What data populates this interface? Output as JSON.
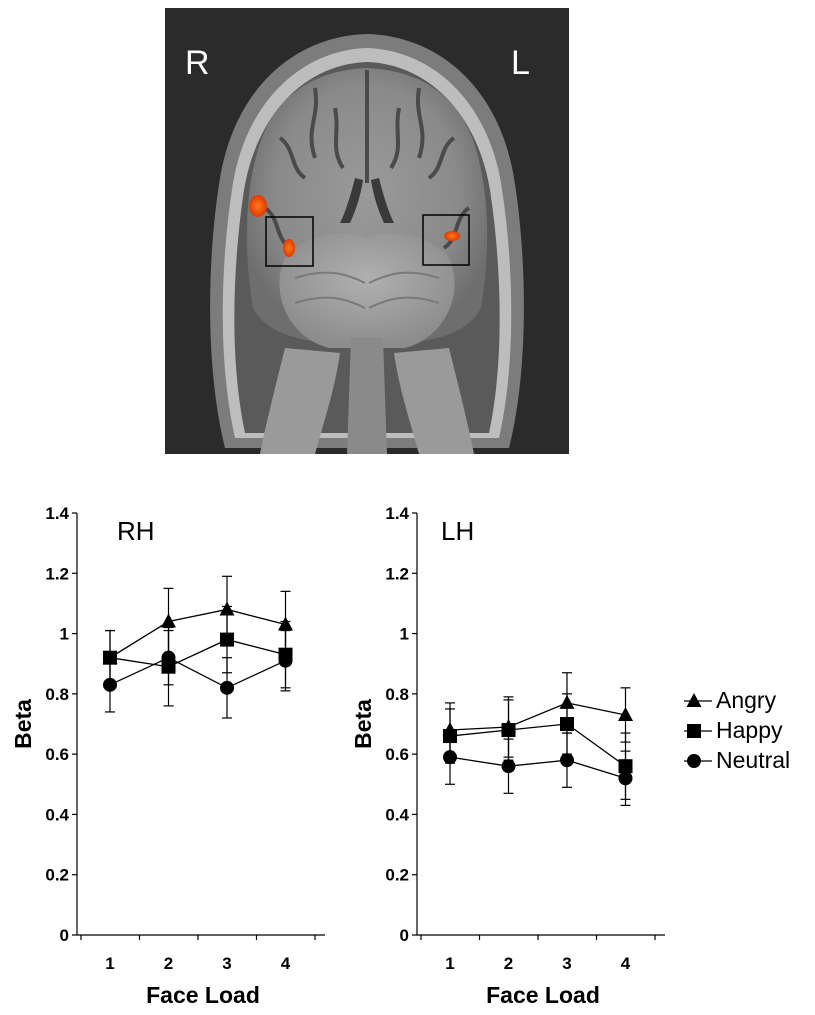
{
  "brain_image": {
    "label_right": "R",
    "label_left": "L"
  },
  "chart_data": [
    {
      "type": "line",
      "title": "RH",
      "xlabel": "Face Load",
      "ylabel": "Beta",
      "x": [
        1,
        2,
        3,
        4
      ],
      "ylim": [
        0,
        1.4
      ],
      "yticks": [
        "0",
        "0.2",
        "0.4",
        "0.6",
        "0.8",
        "1",
        "1.2",
        "1.4"
      ],
      "series": [
        {
          "name": "Angry",
          "marker": "triangle",
          "values": [
            0.92,
            1.04,
            1.08,
            1.03
          ],
          "errors": [
            0.09,
            0.11,
            0.11,
            0.11
          ]
        },
        {
          "name": "Happy",
          "marker": "square",
          "values": [
            0.92,
            0.89,
            0.98,
            0.93
          ],
          "errors": [
            0.09,
            0.13,
            0.11,
            0.11
          ]
        },
        {
          "name": "Neutral",
          "marker": "circle",
          "values": [
            0.83,
            0.92,
            0.82,
            0.91
          ],
          "errors": [
            0.09,
            0.09,
            0.1,
            0.1
          ]
        }
      ]
    },
    {
      "type": "line",
      "title": "LH",
      "xlabel": "Face Load",
      "ylabel": "Beta",
      "x": [
        1,
        2,
        3,
        4
      ],
      "ylim": [
        0,
        1.4
      ],
      "yticks": [
        "0",
        "0.2",
        "0.4",
        "0.6",
        "0.8",
        "1",
        "1.2",
        "1.4"
      ],
      "series": [
        {
          "name": "Angry",
          "marker": "triangle",
          "values": [
            0.68,
            0.69,
            0.77,
            0.73
          ],
          "errors": [
            0.09,
            0.1,
            0.1,
            0.09
          ]
        },
        {
          "name": "Happy",
          "marker": "square",
          "values": [
            0.66,
            0.68,
            0.7,
            0.56
          ],
          "errors": [
            0.09,
            0.1,
            0.1,
            0.11
          ]
        },
        {
          "name": "Neutral",
          "marker": "circle",
          "values": [
            0.59,
            0.56,
            0.58,
            0.52
          ],
          "errors": [
            0.09,
            0.09,
            0.09,
            0.09
          ]
        }
      ]
    }
  ],
  "legend": {
    "placement": "right",
    "entries": [
      {
        "name": "Angry",
        "marker": "triangle"
      },
      {
        "name": "Happy",
        "marker": "square"
      },
      {
        "name": "Neutral",
        "marker": "circle"
      }
    ]
  }
}
